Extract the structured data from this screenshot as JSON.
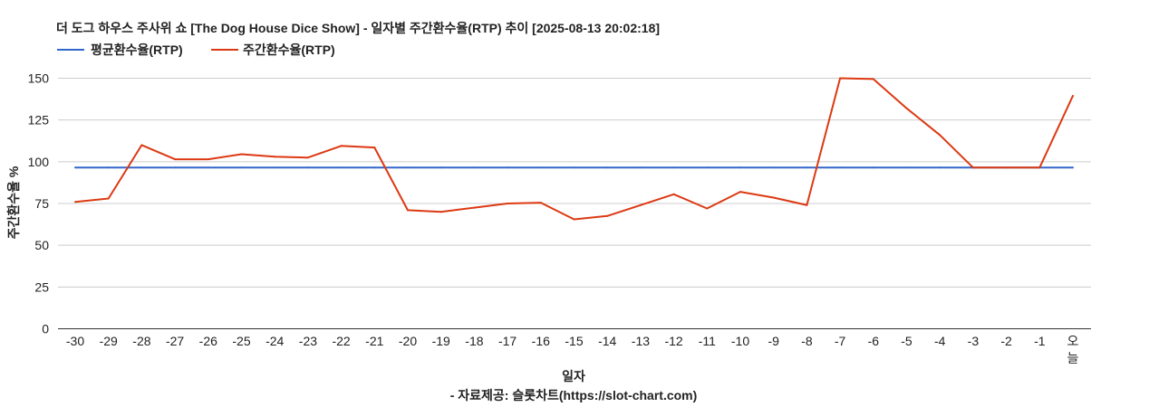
{
  "chart_data": {
    "type": "line",
    "title": "더 도그 하우스 주사위 쇼 [The Dog House Dice Show] - 일자별 주간환수율(RTP) 추이 [2025-08-13 20:02:18]",
    "xlabel": "일자",
    "ylabel": "주간환수율 %",
    "source": "- 자료제공: 슬롯차트(https://slot-chart.com)",
    "categories": [
      "-30",
      "-29",
      "-28",
      "-27",
      "-26",
      "-25",
      "-24",
      "-23",
      "-22",
      "-21",
      "-20",
      "-19",
      "-18",
      "-17",
      "-16",
      "-15",
      "-14",
      "-13",
      "-12",
      "-11",
      "-10",
      "-9",
      "-8",
      "-7",
      "-6",
      "-5",
      "-4",
      "-3",
      "-2",
      "-1",
      "오늘"
    ],
    "yticks": [
      0,
      25,
      50,
      75,
      100,
      125,
      150
    ],
    "ylim": [
      0,
      160
    ],
    "grid": true,
    "legend_position": "top-left",
    "series": [
      {
        "name": "평균환수율(RTP)",
        "color": "#3366cc",
        "values": [
          96.5,
          96.5,
          96.5,
          96.5,
          96.5,
          96.5,
          96.5,
          96.5,
          96.5,
          96.5,
          96.5,
          96.5,
          96.5,
          96.5,
          96.5,
          96.5,
          96.5,
          96.5,
          96.5,
          96.5,
          96.5,
          96.5,
          96.5,
          96.5,
          96.5,
          96.5,
          96.5,
          96.5,
          96.5,
          96.5,
          96.5
        ]
      },
      {
        "name": "주간환수율(RTP)",
        "color": "#dc3912",
        "values": [
          76,
          78,
          110,
          101.5,
          101.5,
          104.5,
          103,
          102.5,
          109.5,
          108.5,
          71,
          70,
          72.5,
          75,
          75.5,
          65.5,
          67.5,
          74,
          80.5,
          72,
          82,
          78.5,
          74,
          150,
          149.5,
          132,
          116,
          96.5,
          96.5,
          96.5,
          139.5
        ]
      }
    ]
  }
}
